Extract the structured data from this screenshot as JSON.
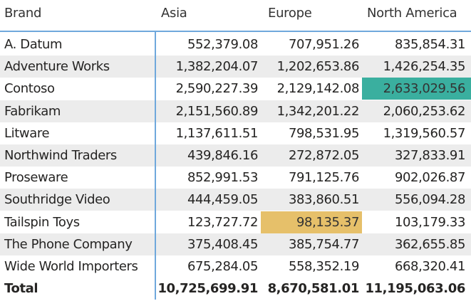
{
  "columns": [
    "Brand",
    "Asia",
    "Europe",
    "North America"
  ],
  "rows": [
    {
      "brand": "A. Datum",
      "values": [
        "552,379.08",
        "707,951.26",
        "835,854.31"
      ]
    },
    {
      "brand": "Adventure Works",
      "values": [
        "1,382,204.07",
        "1,202,653.86",
        "1,426,254.35"
      ]
    },
    {
      "brand": "Contoso",
      "values": [
        "2,590,227.39",
        "2,129,142.08",
        "2,633,029.56"
      ]
    },
    {
      "brand": "Fabrikam",
      "values": [
        "2,151,560.89",
        "1,342,201.22",
        "2,060,253.62"
      ]
    },
    {
      "brand": "Litware",
      "values": [
        "1,137,611.51",
        "798,531.95",
        "1,319,560.57"
      ]
    },
    {
      "brand": "Northwind Traders",
      "values": [
        "439,846.16",
        "272,872.05",
        "327,833.91"
      ]
    },
    {
      "brand": "Proseware",
      "values": [
        "852,991.53",
        "791,125.76",
        "902,026.87"
      ]
    },
    {
      "brand": "Southridge Video",
      "values": [
        "444,459.05",
        "383,860.51",
        "556,094.28"
      ]
    },
    {
      "brand": "Tailspin Toys",
      "values": [
        "123,727.72",
        "98,135.37",
        "103,179.33"
      ]
    },
    {
      "brand": "The Phone Company",
      "values": [
        "375,408.45",
        "385,754.77",
        "362,655.85"
      ]
    },
    {
      "brand": "Wide World Importers",
      "values": [
        "675,284.05",
        "558,352.19",
        "668,320.41"
      ]
    }
  ],
  "total": {
    "label": "Total",
    "values": [
      "10,725,699.91",
      "8,670,581.01",
      "11,195,063.06"
    ]
  },
  "highlights": [
    {
      "row": 2,
      "col": 3,
      "color": "#3aaf9f"
    },
    {
      "row": 8,
      "col": 2,
      "color": "#e6c06a"
    }
  ]
}
